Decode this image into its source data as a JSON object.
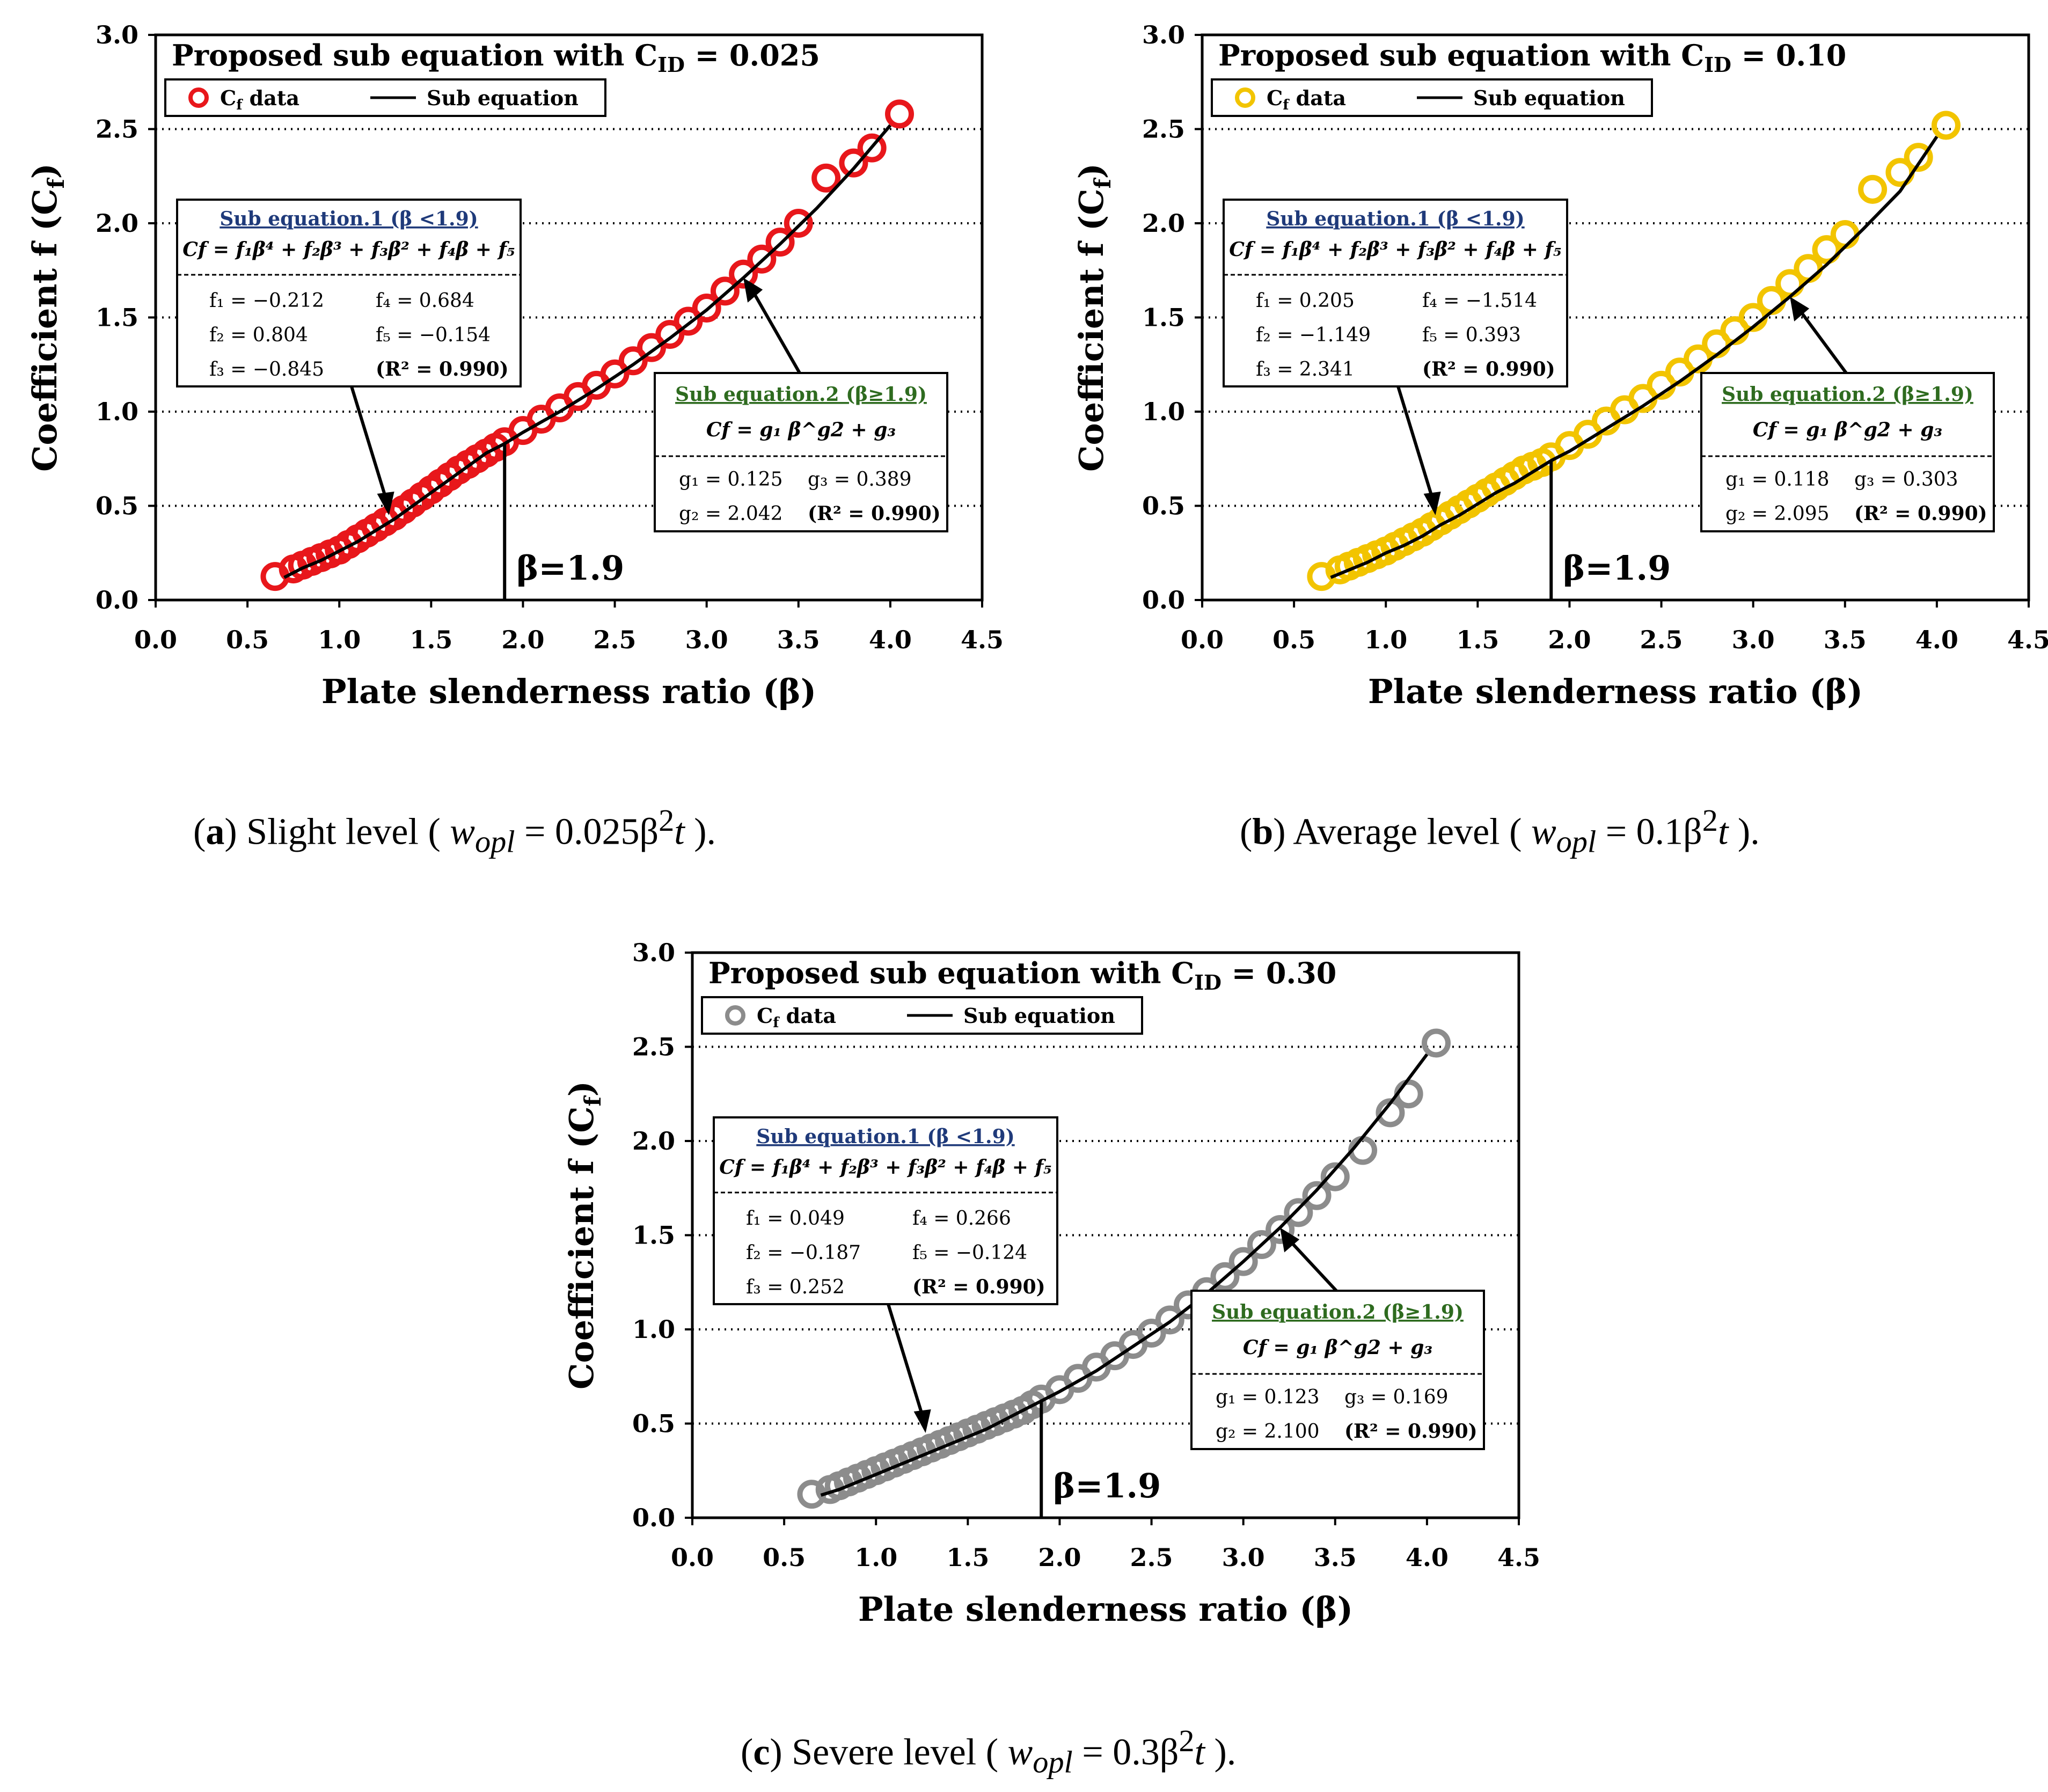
{
  "chart_data": [
    {
      "type": "scatter",
      "title_prefix": "Proposed sub equation with C",
      "title_sub": "ID",
      "title_suffix": " = 0.025",
      "xlabel": "Plate slenderness ratio (β)",
      "ylabel": "Coefficient f (C",
      "ylabel_sub": "f",
      "ylabel_close": ")",
      "xlim": [
        0,
        4.5
      ],
      "ylim": [
        0,
        3
      ],
      "xticks": [
        "0.0",
        "0.5",
        "1.0",
        "1.5",
        "2.0",
        "2.5",
        "3.0",
        "3.5",
        "4.0",
        "4.5"
      ],
      "yticks": [
        "0.0",
        "0.5",
        "1.0",
        "1.5",
        "2.0",
        "2.5",
        "3.0"
      ],
      "grid_y": [
        0.5,
        1.0,
        1.5,
        2.0,
        2.5
      ],
      "marker_color": "#e8171b",
      "legend": {
        "data_label": "C",
        "data_label_sub": "f",
        "data_label_suffix": " data",
        "line_label": "Sub equation"
      },
      "data_x": [
        0.65,
        0.75,
        0.8,
        0.85,
        0.9,
        0.95,
        1.0,
        1.05,
        1.1,
        1.15,
        1.2,
        1.25,
        1.3,
        1.35,
        1.4,
        1.45,
        1.5,
        1.55,
        1.6,
        1.65,
        1.7,
        1.75,
        1.8,
        1.85,
        1.9,
        2.0,
        2.1,
        2.2,
        2.3,
        2.4,
        2.5,
        2.6,
        2.7,
        2.8,
        2.9,
        3.0,
        3.1,
        3.2,
        3.3,
        3.4,
        3.5,
        3.65,
        3.8,
        3.9,
        4.05
      ],
      "data_y": [
        0.125,
        0.165,
        0.185,
        0.205,
        0.225,
        0.245,
        0.265,
        0.295,
        0.325,
        0.355,
        0.385,
        0.415,
        0.445,
        0.48,
        0.515,
        0.55,
        0.585,
        0.62,
        0.655,
        0.69,
        0.72,
        0.75,
        0.78,
        0.81,
        0.84,
        0.9,
        0.96,
        1.02,
        1.08,
        1.14,
        1.2,
        1.27,
        1.34,
        1.41,
        1.48,
        1.55,
        1.64,
        1.73,
        1.81,
        1.9,
        2.0,
        2.24,
        2.32,
        2.4,
        2.58
      ],
      "curve_x": [
        0.7,
        0.8,
        0.9,
        1.0,
        1.1,
        1.2,
        1.3,
        1.4,
        1.5,
        1.6,
        1.7,
        1.8,
        1.9,
        2.0,
        2.2,
        2.4,
        2.6,
        2.8,
        3.0,
        3.2,
        3.4,
        3.6,
        3.8,
        4.0
      ],
      "curve_y": [
        0.12,
        0.17,
        0.21,
        0.26,
        0.31,
        0.37,
        0.43,
        0.5,
        0.57,
        0.64,
        0.71,
        0.78,
        0.83,
        0.89,
        1.0,
        1.12,
        1.25,
        1.39,
        1.54,
        1.71,
        1.89,
        2.08,
        2.29,
        2.52
      ],
      "beta_line": 1.9,
      "beta_label": "β=1.9",
      "box1": {
        "title": "Sub equation.1 (β <1.9)",
        "equation": "Cf = f₁β⁴ + f₂β³ + f₃β² + f₄β + f₅",
        "c1": [
          "f₁ = −0.212",
          "f₂ = 0.804",
          "f₃ = −0.845"
        ],
        "c2": [
          "f₄ = 0.684",
          "f₅ = −0.154",
          "(R² = 0.990)"
        ]
      },
      "box2": {
        "title": "Sub equation.2 (β≥1.9)",
        "equation": "Cf = g₁ β^g2 + g₃",
        "c1": [
          "g₁ = 0.125",
          "g₂ = 2.042"
        ],
        "c2": [
          "g₃ = 0.389",
          "(R² = 0.990)"
        ]
      }
    },
    {
      "type": "scatter",
      "title_prefix": "Proposed sub equation with C",
      "title_sub": "ID",
      "title_suffix": " = 0.10",
      "xlabel": "Plate slenderness ratio (β)",
      "ylabel": "Coefficient f (C",
      "ylabel_sub": "f",
      "ylabel_close": ")",
      "xlim": [
        0,
        4.5
      ],
      "ylim": [
        0,
        3
      ],
      "xticks": [
        "0.0",
        "0.5",
        "1.0",
        "1.5",
        "2.0",
        "2.5",
        "3.0",
        "3.5",
        "4.0",
        "4.5"
      ],
      "yticks": [
        "0.0",
        "0.5",
        "1.0",
        "1.5",
        "2.0",
        "2.5",
        "3.0"
      ],
      "grid_y": [
        0.5,
        1.0,
        1.5,
        2.0,
        2.5
      ],
      "marker_color": "#f2c400",
      "legend": {
        "data_label": "C",
        "data_label_sub": "f",
        "data_label_suffix": " data",
        "line_label": "Sub equation"
      },
      "data_x": [
        0.65,
        0.75,
        0.8,
        0.85,
        0.9,
        0.95,
        1.0,
        1.05,
        1.1,
        1.15,
        1.2,
        1.25,
        1.3,
        1.35,
        1.4,
        1.45,
        1.5,
        1.55,
        1.6,
        1.65,
        1.7,
        1.75,
        1.8,
        1.85,
        1.9,
        2.0,
        2.1,
        2.2,
        2.3,
        2.4,
        2.5,
        2.6,
        2.7,
        2.8,
        2.9,
        3.0,
        3.1,
        3.2,
        3.3,
        3.4,
        3.5,
        3.65,
        3.8,
        3.9,
        4.05
      ],
      "data_y": [
        0.125,
        0.16,
        0.18,
        0.2,
        0.22,
        0.24,
        0.26,
        0.285,
        0.31,
        0.335,
        0.36,
        0.39,
        0.42,
        0.45,
        0.48,
        0.51,
        0.54,
        0.57,
        0.6,
        0.63,
        0.66,
        0.69,
        0.71,
        0.73,
        0.76,
        0.82,
        0.88,
        0.95,
        1.01,
        1.07,
        1.14,
        1.21,
        1.28,
        1.36,
        1.43,
        1.5,
        1.59,
        1.68,
        1.76,
        1.86,
        1.94,
        2.18,
        2.27,
        2.35,
        2.52
      ],
      "curve_x": [
        0.7,
        0.8,
        0.9,
        1.0,
        1.1,
        1.2,
        1.3,
        1.4,
        1.5,
        1.6,
        1.7,
        1.8,
        1.9,
        2.0,
        2.2,
        2.4,
        2.6,
        2.8,
        3.0,
        3.2,
        3.4,
        3.6,
        3.8,
        4.0
      ],
      "curve_y": [
        0.12,
        0.16,
        0.2,
        0.25,
        0.29,
        0.34,
        0.4,
        0.45,
        0.51,
        0.57,
        0.62,
        0.68,
        0.74,
        0.79,
        0.91,
        1.03,
        1.16,
        1.3,
        1.45,
        1.61,
        1.78,
        1.97,
        2.17,
        2.46
      ],
      "beta_line": 1.9,
      "beta_label": "β=1.9",
      "box1": {
        "title": "Sub equation.1 (β <1.9)",
        "equation": "Cf = f₁β⁴ + f₂β³ + f₃β² + f₄β + f₅",
        "c1": [
          "f₁ = 0.205",
          "f₂ = −1.149",
          "f₃ = 2.341"
        ],
        "c2": [
          "f₄ = −1.514",
          "f₅ = 0.393",
          "(R² = 0.990)"
        ]
      },
      "box2": {
        "title": "Sub equation.2 (β≥1.9)",
        "equation": "Cf = g₁ β^g2 + g₃",
        "c1": [
          "g₁ = 0.118",
          "g₂ = 2.095"
        ],
        "c2": [
          "g₃ = 0.303",
          "(R² = 0.990)"
        ]
      }
    },
    {
      "type": "scatter",
      "title_prefix": "Proposed sub equation with C",
      "title_sub": "ID",
      "title_suffix": " = 0.30",
      "xlabel": "Plate slenderness ratio (β)",
      "ylabel": "Coefficient f (C",
      "ylabel_sub": "f",
      "ylabel_close": ")",
      "xlim": [
        0,
        4.5
      ],
      "ylim": [
        0,
        3
      ],
      "xticks": [
        "0.0",
        "0.5",
        "1.0",
        "1.5",
        "2.0",
        "2.5",
        "3.0",
        "3.5",
        "4.0",
        "4.5"
      ],
      "yticks": [
        "0.0",
        "0.5",
        "1.0",
        "1.5",
        "2.0",
        "2.5",
        "3.0"
      ],
      "grid_y": [
        0.5,
        1.0,
        1.5,
        2.0,
        2.5
      ],
      "marker_color": "#8c8c8c",
      "legend": {
        "data_label": "C",
        "data_label_sub": "f",
        "data_label_suffix": " data",
        "line_label": "Sub equation"
      },
      "data_x": [
        0.65,
        0.75,
        0.8,
        0.85,
        0.9,
        0.95,
        1.0,
        1.05,
        1.1,
        1.15,
        1.2,
        1.25,
        1.3,
        1.35,
        1.4,
        1.45,
        1.5,
        1.55,
        1.6,
        1.65,
        1.7,
        1.75,
        1.8,
        1.85,
        1.9,
        2.0,
        2.1,
        2.2,
        2.3,
        2.4,
        2.5,
        2.6,
        2.7,
        2.8,
        2.9,
        3.0,
        3.1,
        3.2,
        3.3,
        3.4,
        3.5,
        3.65,
        3.8,
        3.9,
        4.05
      ],
      "data_y": [
        0.125,
        0.15,
        0.17,
        0.19,
        0.21,
        0.23,
        0.25,
        0.27,
        0.29,
        0.31,
        0.33,
        0.35,
        0.37,
        0.39,
        0.41,
        0.43,
        0.45,
        0.47,
        0.49,
        0.51,
        0.53,
        0.55,
        0.57,
        0.6,
        0.63,
        0.68,
        0.74,
        0.8,
        0.86,
        0.92,
        0.98,
        1.05,
        1.13,
        1.2,
        1.28,
        1.36,
        1.45,
        1.53,
        1.62,
        1.71,
        1.81,
        1.95,
        2.15,
        2.25,
        2.52
      ],
      "curve_x": [
        0.7,
        0.8,
        0.9,
        1.0,
        1.1,
        1.2,
        1.3,
        1.4,
        1.5,
        1.6,
        1.7,
        1.8,
        1.9,
        2.0,
        2.2,
        2.4,
        2.6,
        2.8,
        3.0,
        3.2,
        3.4,
        3.6,
        3.8,
        4.0
      ],
      "curve_y": [
        0.12,
        0.15,
        0.19,
        0.23,
        0.27,
        0.31,
        0.35,
        0.39,
        0.43,
        0.47,
        0.52,
        0.57,
        0.62,
        0.67,
        0.78,
        0.91,
        1.04,
        1.19,
        1.36,
        1.54,
        1.74,
        1.96,
        2.2,
        2.46
      ],
      "beta_line": 1.9,
      "beta_label": "β=1.9",
      "box1": {
        "title": "Sub equation.1 (β <1.9)",
        "equation": "Cf = f₁β⁴ + f₂β³ + f₃β² + f₄β + f₅",
        "c1": [
          "f₁ = 0.049",
          "f₂ = −0.187",
          "f₃ = 0.252"
        ],
        "c2": [
          "f₄ = 0.266",
          "f₅ = −0.124",
          "(R² = 0.990)"
        ]
      },
      "box2": {
        "title": "Sub equation.2 (β≥1.9)",
        "equation": "Cf = g₁ β^g2 + g₃",
        "c1": [
          "g₁ = 0.123",
          "g₂ = 2.100"
        ],
        "c2": [
          "g₃ = 0.169",
          "(R² = 0.990)"
        ]
      }
    }
  ],
  "captions": [
    {
      "letter": "a",
      "label": "Slight level",
      "formula_lhs": "w",
      "formula_sub": "opl",
      "formula_rhs": " = 0.025β",
      "formula_exp": "2",
      "formula_end": "t"
    },
    {
      "letter": "b",
      "label": "Average level",
      "formula_lhs": "w",
      "formula_sub": "opl",
      "formula_rhs": " = 0.1β",
      "formula_exp": "2",
      "formula_end": "t"
    },
    {
      "letter": "c",
      "label": "Severe level",
      "formula_lhs": "w",
      "formula_sub": "opl",
      "formula_rhs": " = 0.3β",
      "formula_exp": "2",
      "formula_end": "t"
    }
  ],
  "colors": {
    "axis": "#000000",
    "box1_title": "#1f3a7a",
    "box2_title": "#2e6b1f"
  }
}
